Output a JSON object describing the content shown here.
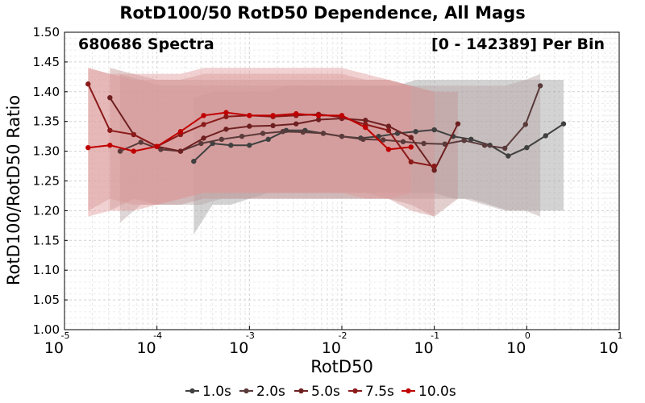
{
  "chart_data": {
    "type": "line",
    "title": "RotD100/50 RotD50 Dependence, All Mags",
    "annotations": {
      "left": "680686 Spectra",
      "right": "[0 - 142389] Per Bin"
    },
    "xlabel": "RotD50",
    "ylabel": "RotD100/RotD50 Ratio",
    "x_scale": "log",
    "xlim": [
      1e-05,
      10
    ],
    "ylim": [
      1.0,
      1.5
    ],
    "x_ticks": [
      {
        "value": 1e-05,
        "base": "10",
        "exp": "-5"
      },
      {
        "value": 0.0001,
        "base": "10",
        "exp": "-4"
      },
      {
        "value": 0.001,
        "base": "10",
        "exp": "-3"
      },
      {
        "value": 0.01,
        "base": "10",
        "exp": "-2"
      },
      {
        "value": 0.1,
        "base": "10",
        "exp": "-1"
      },
      {
        "value": 1,
        "base": "10",
        "exp": "0"
      },
      {
        "value": 10,
        "base": "10",
        "exp": "1"
      }
    ],
    "y_ticks": [
      "1.00",
      "1.05",
      "1.10",
      "1.15",
      "1.20",
      "1.25",
      "1.30",
      "1.35",
      "1.40",
      "1.45",
      "1.50"
    ],
    "grid": true,
    "legend_position": "bottom",
    "series": [
      {
        "name": "1.0s",
        "color": "#404040",
        "band_color": "#9e9e9e",
        "x": [
          0.00025,
          0.0004,
          0.00063,
          0.001,
          0.0016,
          0.0025,
          0.004,
          0.0063,
          0.01,
          0.016,
          0.025,
          0.04,
          0.063,
          0.1,
          0.16,
          0.25,
          0.4,
          0.63,
          1.0,
          1.6,
          2.5
        ],
        "values": [
          1.283,
          1.313,
          1.31,
          1.31,
          1.32,
          1.335,
          1.335,
          1.33,
          1.325,
          1.322,
          1.325,
          1.33,
          1.333,
          1.336,
          1.325,
          1.32,
          1.31,
          1.292,
          1.306,
          1.326,
          1.346
        ],
        "band_upper": [
          1.39,
          1.4,
          1.4,
          1.4,
          1.4,
          1.41,
          1.41,
          1.41,
          1.41,
          1.41,
          1.41,
          1.41,
          1.42,
          1.42,
          1.42,
          1.42,
          1.42,
          1.42,
          1.42,
          1.42,
          1.42
        ],
        "band_lower": [
          1.16,
          1.21,
          1.21,
          1.22,
          1.23,
          1.23,
          1.23,
          1.23,
          1.23,
          1.23,
          1.23,
          1.23,
          1.23,
          1.23,
          1.22,
          1.22,
          1.21,
          1.2,
          1.2,
          1.2,
          1.2
        ]
      },
      {
        "name": "2.0s",
        "color": "#5a3a3a",
        "band_color": "#b8a6a6",
        "x": [
          4e-05,
          6.7e-05,
          0.00011,
          0.00018,
          0.0003,
          0.0005,
          0.00083,
          0.0014,
          0.0023,
          0.0038,
          0.0063,
          0.01,
          0.017,
          0.028,
          0.046,
          0.077,
          0.13,
          0.21,
          0.35,
          0.58,
          0.97,
          1.4
        ],
        "values": [
          1.3,
          1.315,
          1.303,
          1.3,
          1.313,
          1.32,
          1.325,
          1.33,
          1.333,
          1.332,
          1.33,
          1.325,
          1.32,
          1.319,
          1.316,
          1.313,
          1.312,
          1.318,
          1.31,
          1.305,
          1.345,
          1.41
        ],
        "band_upper": [
          1.43,
          1.42,
          1.41,
          1.41,
          1.41,
          1.41,
          1.41,
          1.41,
          1.41,
          1.41,
          1.41,
          1.41,
          1.41,
          1.41,
          1.41,
          1.41,
          1.41,
          1.41,
          1.41,
          1.41,
          1.42,
          1.43
        ],
        "band_lower": [
          1.18,
          1.21,
          1.21,
          1.21,
          1.21,
          1.22,
          1.22,
          1.22,
          1.22,
          1.22,
          1.22,
          1.22,
          1.22,
          1.22,
          1.22,
          1.22,
          1.22,
          1.22,
          1.21,
          1.2,
          1.2,
          1.19
        ]
      },
      {
        "name": "5.0s",
        "color": "#6e2020",
        "band_color": "#c49494",
        "x": [
          3.1e-05,
          5.6e-05,
          0.0001,
          0.00018,
          0.00032,
          0.00056,
          0.001,
          0.0018,
          0.0032,
          0.0056,
          0.01,
          0.018,
          0.032,
          0.056,
          0.1,
          0.18
        ],
        "values": [
          1.39,
          1.328,
          1.308,
          1.3,
          1.322,
          1.337,
          1.342,
          1.343,
          1.346,
          1.353,
          1.355,
          1.352,
          1.342,
          1.323,
          1.268,
          1.346
        ],
        "band_upper": [
          1.44,
          1.43,
          1.42,
          1.42,
          1.42,
          1.42,
          1.42,
          1.42,
          1.42,
          1.42,
          1.42,
          1.42,
          1.42,
          1.41,
          1.4,
          1.4
        ],
        "band_lower": [
          1.2,
          1.22,
          1.21,
          1.21,
          1.22,
          1.22,
          1.22,
          1.22,
          1.22,
          1.22,
          1.22,
          1.22,
          1.22,
          1.21,
          1.19,
          1.22
        ]
      },
      {
        "name": "7.5s",
        "color": "#8b1a1a",
        "band_color": "#d49a9a",
        "x": [
          1.8e-05,
          3.1e-05,
          5.6e-05,
          0.0001,
          0.00018,
          0.00032,
          0.00056,
          0.001,
          0.0018,
          0.0032,
          0.0056,
          0.01,
          0.018,
          0.032,
          0.056,
          0.1
        ],
        "values": [
          1.413,
          1.335,
          1.328,
          1.308,
          1.328,
          1.345,
          1.358,
          1.36,
          1.358,
          1.36,
          1.362,
          1.357,
          1.345,
          1.335,
          1.282,
          1.275
        ],
        "band_upper": [
          1.44,
          1.43,
          1.42,
          1.42,
          1.42,
          1.43,
          1.43,
          1.43,
          1.43,
          1.43,
          1.43,
          1.43,
          1.42,
          1.42,
          1.41,
          1.4
        ],
        "band_lower": [
          1.2,
          1.22,
          1.21,
          1.21,
          1.22,
          1.23,
          1.23,
          1.23,
          1.23,
          1.23,
          1.23,
          1.23,
          1.23,
          1.22,
          1.2,
          1.19
        ]
      },
      {
        "name": "10.0s",
        "color": "#c00000",
        "band_color": "#e09a9a",
        "x": [
          1.8e-05,
          3.1e-05,
          5.6e-05,
          0.0001,
          0.00018,
          0.00032,
          0.00056,
          0.001,
          0.0018,
          0.0032,
          0.0056,
          0.01,
          0.018,
          0.032,
          0.056
        ],
        "values": [
          1.306,
          1.31,
          1.3,
          1.308,
          1.333,
          1.36,
          1.365,
          1.36,
          1.36,
          1.363,
          1.36,
          1.36,
          1.34,
          1.303,
          1.307
        ],
        "band_upper": [
          1.44,
          1.43,
          1.43,
          1.43,
          1.43,
          1.44,
          1.44,
          1.44,
          1.44,
          1.44,
          1.44,
          1.44,
          1.43,
          1.42,
          1.41
        ],
        "band_lower": [
          1.19,
          1.2,
          1.2,
          1.21,
          1.22,
          1.23,
          1.23,
          1.23,
          1.23,
          1.23,
          1.23,
          1.23,
          1.22,
          1.22,
          1.23
        ]
      }
    ]
  }
}
